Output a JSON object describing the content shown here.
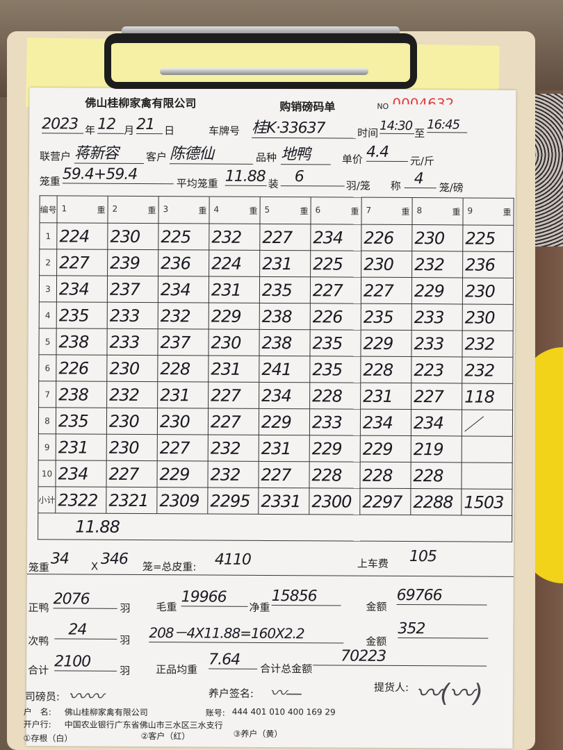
{
  "header": {
    "company": "佛山桂柳家禽有限公司",
    "form_title": "购销磅码单",
    "no_label": "NO",
    "no_value": "0004632"
  },
  "info": {
    "year": "2023",
    "year_label": "年",
    "month": "12",
    "month_label": "月",
    "day": "21",
    "day_label": "日",
    "plate_label": "车牌号",
    "plate": "桂K·33637",
    "time_label": "时间",
    "time_from": "14:30",
    "to_label": "至",
    "time_to": "16:45",
    "partner_label": "联营户",
    "partner": "蒋新容",
    "customer_label": "客户",
    "customer": "陈德仙",
    "variety_label": "品种",
    "variety": "地鸭",
    "price_label": "单价",
    "price": "4.4",
    "price_unit": "元/斤",
    "cage_weight_label": "笼重",
    "cage_weight": "59.4+59.4",
    "avg_cage_label": "平均笼重",
    "avg_cage": "11.88",
    "load_label": "装",
    "load": "6",
    "load_unit": "羽/笼",
    "scale_label": "称",
    "scale": "4",
    "scale_unit": "笼/磅"
  },
  "table": {
    "index_header": "编号",
    "columns": [
      "1",
      "2",
      "3",
      "4",
      "5",
      "6",
      "7",
      "8",
      "9"
    ],
    "weight_label": "重",
    "rows": [
      {
        "label": "1",
        "values": [
          "224",
          "230",
          "225",
          "232",
          "227",
          "234",
          "226",
          "230",
          "225"
        ]
      },
      {
        "label": "2",
        "values": [
          "227",
          "239",
          "236",
          "224",
          "231",
          "225",
          "230",
          "232",
          "236"
        ]
      },
      {
        "label": "3",
        "values": [
          "234",
          "237",
          "234",
          "231",
          "235",
          "227",
          "227",
          "229",
          "230"
        ]
      },
      {
        "label": "4",
        "values": [
          "235",
          "233",
          "232",
          "229",
          "238",
          "226",
          "235",
          "233",
          "230"
        ]
      },
      {
        "label": "5",
        "values": [
          "238",
          "233",
          "237",
          "230",
          "238",
          "235",
          "229",
          "233",
          "232"
        ]
      },
      {
        "label": "6",
        "values": [
          "226",
          "230",
          "228",
          "231",
          "241",
          "235",
          "228",
          "223",
          "232"
        ]
      },
      {
        "label": "7",
        "values": [
          "238",
          "232",
          "231",
          "227",
          "234",
          "228",
          "231",
          "227",
          "118"
        ]
      },
      {
        "label": "8",
        "values": [
          "235",
          "230",
          "230",
          "227",
          "229",
          "233",
          "234",
          "234",
          "／"
        ]
      },
      {
        "label": "9",
        "values": [
          "231",
          "230",
          "227",
          "232",
          "231",
          "229",
          "229",
          "219",
          ""
        ]
      },
      {
        "label": "10",
        "values": [
          "234",
          "227",
          "229",
          "232",
          "227",
          "228",
          "228",
          "228",
          ""
        ]
      }
    ],
    "subtotal_label": "小计",
    "subtotals": [
      "2322",
      "2321",
      "2309",
      "2295",
      "2331",
      "2300",
      "2297",
      "2288",
      "1503"
    ],
    "note": "11.88"
  },
  "summary": {
    "cage_label": "笼重",
    "cage_weight": "34",
    "times": "X",
    "cage_count": "346",
    "tare_label": "笼=总皮重:",
    "tare": "4110",
    "loading_fee_label": "上车费",
    "loading_fee": "105",
    "good_duck_label": "正鸭",
    "good_duck": "2076",
    "bird_unit": "羽",
    "gross_label": "毛重",
    "gross": "19966",
    "net_label": "净重",
    "net": "15856",
    "amount_label": "金额",
    "amount": "69766",
    "second_duck_label": "次鸭",
    "second_duck": "24",
    "second_calc": "208－4X11.88=160X2.2",
    "amount2": "352",
    "total_label": "合计",
    "total_birds": "2100",
    "avg_label": "正品均重",
    "avg_weight": "7.64",
    "grand_total_label": "合计总金额",
    "grand_total": "70223"
  },
  "signatures": {
    "scaler_label": "司磅员:",
    "farmer_label": "养户签名:",
    "picker_label": "提货人:"
  },
  "footer": {
    "account_name_label": "户　名:",
    "account_name": "佛山桂柳家禽有限公司",
    "account_no_label": "账号:",
    "account_no": "444 401 010 400 169 29",
    "bank_label": "开户行:",
    "bank": "中国农业银行广东省佛山市三水区三水支行",
    "copy1": "①存根（白）",
    "copy2": "②客户（红）",
    "copy3": "③养户（黄）"
  }
}
